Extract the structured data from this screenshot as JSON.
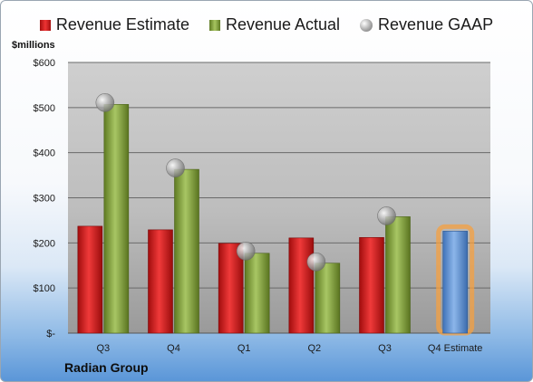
{
  "colors": {
    "estimate": "#d42020",
    "actual": "#8fad4a",
    "gaap": "#a8a8a8",
    "forecast": "#5b8fd4",
    "forecast_glow": "#f5a040"
  },
  "chart_data": {
    "type": "bar",
    "ylabel": "$millions",
    "footer": "Radian Group",
    "ylim": [
      0,
      600
    ],
    "y_ticks": [
      {
        "value": 0,
        "label": "$-"
      },
      {
        "value": 100,
        "label": "$100"
      },
      {
        "value": 200,
        "label": "$200"
      },
      {
        "value": 300,
        "label": "$300"
      },
      {
        "value": 400,
        "label": "$400"
      },
      {
        "value": 500,
        "label": "$500"
      },
      {
        "value": 600,
        "label": "$600"
      }
    ],
    "categories": [
      "Q3",
      "Q4",
      "Q1",
      "Q2",
      "Q3",
      "Q4 Estimate"
    ],
    "grid": true,
    "legend_position": "top",
    "series": [
      {
        "name": "Revenue Estimate",
        "type": "bar",
        "values": [
          237,
          229,
          199,
          211,
          212,
          226
        ]
      },
      {
        "name": "Revenue Actual",
        "type": "bar",
        "values": [
          507,
          363,
          177,
          155,
          258,
          null
        ]
      },
      {
        "name": "Revenue GAAP",
        "type": "bubble",
        "values": [
          511,
          366,
          182,
          158,
          260,
          null
        ]
      }
    ]
  }
}
